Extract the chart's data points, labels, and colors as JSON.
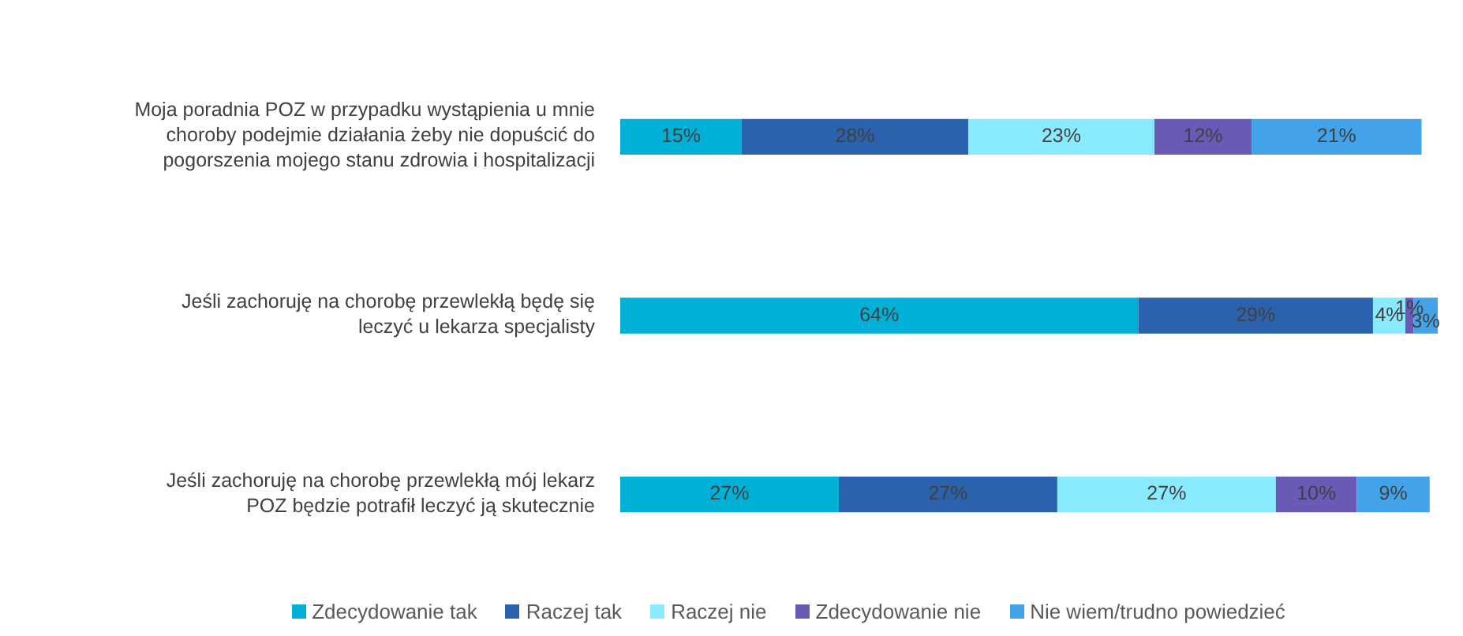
{
  "chart_data": {
    "type": "bar",
    "orientation": "horizontal",
    "stacked": true,
    "categories": [
      "Moja poradnia POZ w przypadku wystąpienia u mnie choroby podejmie działania żeby nie dopuścić do pogorszenia mojego stanu zdrowia i hospitalizacji",
      "Jeśli zachoruję na chorobę przewlekłą będę się leczyć u lekarza specjalisty",
      "Jeśli zachoruję na chorobę przewlekłą mój lekarz POZ będzie potrafił leczyć ją skutecznie"
    ],
    "series": [
      {
        "name": "Zdecydowanie tak",
        "color": "#00b0d6",
        "values": [
          15,
          64,
          27
        ],
        "value_labels": [
          "15%",
          "64%",
          "27%"
        ]
      },
      {
        "name": "Raczej tak",
        "color": "#2b62ad",
        "values": [
          28,
          29,
          27
        ],
        "value_labels": [
          "28%",
          "29%",
          "27%"
        ]
      },
      {
        "name": "Raczej nie",
        "color": "#8aeafd",
        "values": [
          23,
          4,
          27
        ],
        "value_labels": [
          "23%",
          "4%",
          "27%"
        ]
      },
      {
        "name": "Zdecydowanie nie",
        "color": "#6a5ab5",
        "values": [
          12,
          1,
          10
        ],
        "value_labels": [
          "12%",
          "1%",
          "10%"
        ]
      },
      {
        "name": "Nie wiem/trudno powiedzieć",
        "color": "#43a3e8",
        "values": [
          21,
          3,
          9
        ],
        "value_labels": [
          "21%",
          "3%",
          "9%"
        ]
      }
    ],
    "xlim": [
      0,
      101
    ],
    "tick_labels": "y",
    "legend": "bottom"
  }
}
